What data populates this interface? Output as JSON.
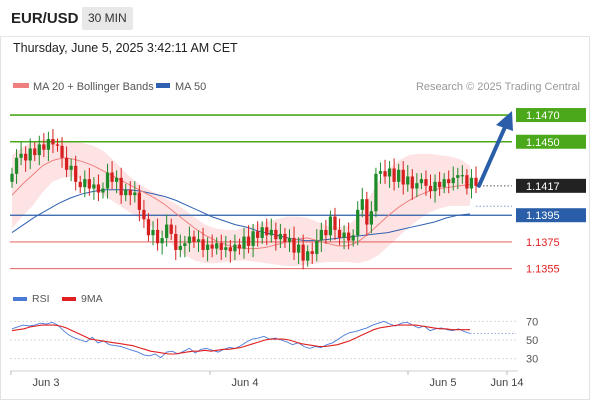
{
  "header": {
    "pair": "EUR/USD",
    "timeframe": "30 MIN",
    "timestamp": "Thursday, June 5, 2025 3:42:11 AM CET"
  },
  "legend": {
    "bb_label": "MA 20 + Bollinger Bands",
    "ma50_label": "MA 50",
    "source": "Research © 2025 Trading Central"
  },
  "rsi_legend": {
    "rsi_label": "RSI",
    "ma9_label": "9MA"
  },
  "colors": {
    "up": "#1e8a2a",
    "down": "#d62020",
    "neutral": "#2a5ea8",
    "bollinger_fill": "#fde3e3",
    "ma20": "#f08080",
    "ma50": "#3060b0",
    "rsi": "#4a7ad8",
    "rsi_ma": "#e02020"
  },
  "chart_data": [
    {
      "type": "candlestick",
      "symbol": "EUR/USD",
      "timeframe": "30 MIN",
      "x_tick_labels": [
        "Jun 3",
        "Jun 4",
        "Jun 5",
        "Jun 14"
      ],
      "ylim": [
        1.1345,
        1.1485
      ],
      "last_price": 1.1417,
      "levels": [
        {
          "value": 1.147,
          "label": "1.1470",
          "kind": "resistance"
        },
        {
          "value": 1.145,
          "label": "1.1450",
          "kind": "resistance"
        },
        {
          "value": 1.1417,
          "label": "1.1417",
          "kind": "last"
        },
        {
          "value": 1.1395,
          "label": "1.1395",
          "kind": "pivot"
        },
        {
          "value": 1.1375,
          "label": "1.1375",
          "kind": "support"
        },
        {
          "value": 1.1355,
          "label": "1.1355",
          "kind": "support"
        }
      ],
      "close": [
        1.1426,
        1.1438,
        1.1441,
        1.1436,
        1.1445,
        1.144,
        1.1448,
        1.1444,
        1.1452,
        1.1448,
        1.1447,
        1.1438,
        1.1429,
        1.1432,
        1.142,
        1.1416,
        1.1422,
        1.1415,
        1.1418,
        1.1412,
        1.1415,
        1.1427,
        1.142,
        1.1423,
        1.141,
        1.1414,
        1.141,
        1.1412,
        1.1399,
        1.1392,
        1.138,
        1.1384,
        1.1374,
        1.1378,
        1.1388,
        1.1381,
        1.1369,
        1.1372,
        1.1374,
        1.1379,
        1.1375,
        1.1377,
        1.1369,
        1.1373,
        1.137,
        1.1374,
        1.1369,
        1.1371,
        1.1368,
        1.1373,
        1.137,
        1.1379,
        1.1372,
        1.1383,
        1.1378,
        1.1386,
        1.138,
        1.1384,
        1.1377,
        1.1381,
        1.1375,
        1.1378,
        1.1367,
        1.1373,
        1.1361,
        1.1368,
        1.1366,
        1.1376,
        1.1384,
        1.138,
        1.1394,
        1.1384,
        1.1378,
        1.1382,
        1.1376,
        1.138,
        1.1399,
        1.1407,
        1.1388,
        1.1398,
        1.1426,
        1.1428,
        1.1424,
        1.143,
        1.142,
        1.1429,
        1.1418,
        1.1424,
        1.1415,
        1.1419,
        1.1422,
        1.1417,
        1.1413,
        1.142,
        1.1416,
        1.1422,
        1.1419,
        1.1423,
        1.1425,
        1.1425,
        1.1415,
        1.1423,
        1.1417
      ],
      "ma20": [
        1.141,
        1.1418,
        1.1425,
        1.1432,
        1.1436,
        1.1438,
        1.1437,
        1.1435,
        1.1432,
        1.1428,
        1.1424,
        1.142,
        1.1416,
        1.1412,
        1.1408,
        1.1403,
        1.1397,
        1.1391,
        1.1385,
        1.138,
        1.1376,
        1.1373,
        1.1371,
        1.137,
        1.137,
        1.1371,
        1.1373,
        1.1375,
        1.1377,
        1.1378,
        1.1376,
        1.1374,
        1.1372,
        1.1372,
        1.1375,
        1.1381,
        1.1388,
        1.1395,
        1.1401,
        1.1406,
        1.141,
        1.1413,
        1.1415,
        1.1416,
        1.1417,
        1.1418
      ],
      "bb_upper": [
        1.144,
        1.1446,
        1.145,
        1.1452,
        1.1452,
        1.1451,
        1.145,
        1.1449,
        1.1447,
        1.1443,
        1.1436,
        1.1428,
        1.1421,
        1.1416,
        1.1412,
        1.1408,
        1.1404,
        1.1399,
        1.1393,
        1.1388,
        1.1385,
        1.1384,
        1.1384,
        1.1386,
        1.1388,
        1.139,
        1.1392,
        1.1394,
        1.1394,
        1.1393,
        1.139,
        1.1387,
        1.1386,
        1.1387,
        1.1394,
        1.1407,
        1.142,
        1.143,
        1.1436,
        1.144,
        1.1441,
        1.1441,
        1.144,
        1.1439,
        1.1437,
        1.1432
      ],
      "bb_lower": [
        1.1385,
        1.1394,
        1.1402,
        1.1412,
        1.142,
        1.1423,
        1.1424,
        1.1421,
        1.1415,
        1.141,
        1.1405,
        1.14,
        1.1395,
        1.1391,
        1.1385,
        1.1378,
        1.1371,
        1.1365,
        1.1361,
        1.1359,
        1.1359,
        1.136,
        1.1361,
        1.1361,
        1.136,
        1.1359,
        1.1358,
        1.1357,
        1.1357,
        1.1358,
        1.1359,
        1.136,
        1.136,
        1.136,
        1.1359,
        1.1361,
        1.1365,
        1.1372,
        1.1379,
        1.1386,
        1.1392,
        1.1397,
        1.14,
        1.1402,
        1.1402,
        1.1402
      ],
      "ma50": [
        1.1382,
        1.1388,
        1.1394,
        1.1399,
        1.1404,
        1.1408,
        1.1411,
        1.1413,
        1.1414,
        1.1414,
        1.1414,
        1.1413,
        1.1411,
        1.1409,
        1.1406,
        1.1402,
        1.1398,
        1.1394,
        1.1391,
        1.1388,
        1.1386,
        1.1383,
        1.1381,
        1.1379,
        1.1377,
        1.1376,
        1.1376,
        1.1377,
        1.1378,
        1.1379,
        1.138,
        1.1381,
        1.1382,
        1.1384,
        1.1386,
        1.1388,
        1.139,
        1.1393,
        1.1395,
        1.1396
      ],
      "projection": {
        "from": 1.1417,
        "to": 1.147,
        "direction": "up"
      }
    },
    {
      "type": "line",
      "title": "RSI",
      "y_tick_labels": [
        "70",
        "50",
        "30"
      ],
      "ylim": [
        20,
        80
      ],
      "series": [
        {
          "name": "RSI",
          "values": [
            62,
            64,
            66,
            65,
            66,
            68,
            67,
            69,
            66,
            60,
            55,
            52,
            50,
            48,
            53,
            47,
            49,
            45,
            44,
            43,
            41,
            39,
            37,
            34,
            33,
            35,
            31,
            37,
            38,
            35,
            38,
            41,
            36,
            40,
            41,
            39,
            37,
            40,
            42,
            41,
            44,
            48,
            51,
            52,
            54,
            51,
            52,
            50,
            48,
            45,
            47,
            43,
            41,
            43,
            42,
            45,
            47,
            51,
            55,
            58,
            59,
            61,
            63,
            66,
            68,
            70,
            67,
            65,
            68,
            69,
            66,
            63,
            65,
            60,
            62,
            63,
            61,
            60,
            62,
            59,
            57
          ]
        },
        {
          "name": "9MA",
          "values": [
            60,
            61,
            62,
            64,
            65,
            66,
            66,
            66,
            65,
            63,
            60,
            57,
            54,
            51,
            50,
            49,
            48,
            47,
            46,
            45,
            44,
            42,
            40,
            38,
            37,
            36,
            35,
            35,
            36,
            37,
            38,
            38,
            39,
            38,
            39,
            40,
            40,
            41,
            42,
            44,
            46,
            48,
            50,
            51,
            51,
            51,
            50,
            48,
            46,
            45,
            44,
            43,
            43,
            44,
            45,
            47,
            49,
            52,
            55,
            58,
            61,
            63,
            64,
            65,
            66,
            66,
            66,
            66,
            65,
            64,
            63,
            62,
            62,
            61,
            61,
            61,
            61
          ]
        }
      ]
    }
  ]
}
